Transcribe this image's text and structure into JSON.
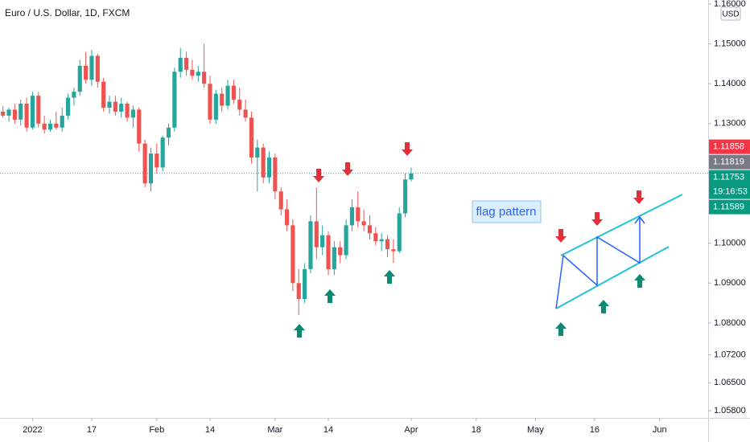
{
  "chart_data": {
    "type": "candlestick",
    "title": "Euro / U.S. Dollar, 1D, FXCM",
    "currency": "USD",
    "annotation": "flag pattern",
    "up_color": "#26a69a",
    "down_color": "#ef5350",
    "xlim": [
      -0.5,
      119.2
    ],
    "ylim": [
      1.0562,
      1.161
    ],
    "yticks": [
      {
        "value": 1.16,
        "label": "1.16000"
      },
      {
        "value": 1.15,
        "label": "1.15000"
      },
      {
        "value": 1.14,
        "label": "1.14000"
      },
      {
        "value": 1.13,
        "label": "1.13000"
      },
      {
        "value": 1.1,
        "label": "1.10000"
      },
      {
        "value": 1.09,
        "label": "1.09000"
      },
      {
        "value": 1.08,
        "label": "1.08000"
      },
      {
        "value": 1.072,
        "label": "1.07200"
      },
      {
        "value": 1.065,
        "label": "1.06500"
      },
      {
        "value": 1.058,
        "label": "1.05800"
      }
    ],
    "xticks": [
      {
        "value": 5,
        "label": "2022"
      },
      {
        "value": 15,
        "label": "17"
      },
      {
        "value": 26,
        "label": "Feb"
      },
      {
        "value": 35,
        "label": "14"
      },
      {
        "value": 46,
        "label": "Mar"
      },
      {
        "value": 55,
        "label": "14"
      },
      {
        "value": 69,
        "label": "Apr"
      },
      {
        "value": 80,
        "label": "18"
      },
      {
        "value": 90,
        "label": "May"
      },
      {
        "value": 100,
        "label": "16"
      },
      {
        "value": 111,
        "label": "Jun"
      }
    ],
    "last_price": 1.11753,
    "price_labels": [
      {
        "value": 1.11858,
        "label": "1.11858",
        "color": "#f23645"
      },
      {
        "value": 1.11819,
        "label": "1.11819",
        "color": "#787b86"
      },
      {
        "value": 1.11753,
        "label": "1.11753",
        "countdown": "19:16:53",
        "color": "#089981"
      },
      {
        "value": 1.11589,
        "label": "1.11589",
        "color": "#089981"
      }
    ],
    "candles": [
      [
        1.133,
        1.1345,
        1.1315,
        1.132
      ],
      [
        1.132,
        1.134,
        1.1305,
        1.1335
      ],
      [
        1.1335,
        1.135,
        1.13,
        1.131
      ],
      [
        1.131,
        1.136,
        1.1295,
        1.135
      ],
      [
        1.135,
        1.1365,
        1.128,
        1.129
      ],
      [
        1.129,
        1.138,
        1.1285,
        1.137
      ],
      [
        1.137,
        1.138,
        1.129,
        1.13
      ],
      [
        1.13,
        1.132,
        1.1275,
        1.1285
      ],
      [
        1.1285,
        1.131,
        1.128,
        1.13
      ],
      [
        1.13,
        1.133,
        1.1285,
        1.129
      ],
      [
        1.129,
        1.134,
        1.128,
        1.132
      ],
      [
        1.132,
        1.1375,
        1.131,
        1.1365
      ],
      [
        1.1365,
        1.139,
        1.1345,
        1.138
      ],
      [
        1.138,
        1.146,
        1.137,
        1.1445
      ],
      [
        1.1445,
        1.148,
        1.14,
        1.141
      ],
      [
        1.141,
        1.1485,
        1.1395,
        1.147
      ],
      [
        1.147,
        1.1475,
        1.139,
        1.1405
      ],
      [
        1.1405,
        1.1415,
        1.133,
        1.134
      ],
      [
        1.134,
        1.137,
        1.1325,
        1.1355
      ],
      [
        1.1355,
        1.137,
        1.132,
        1.133
      ],
      [
        1.133,
        1.1365,
        1.1315,
        1.135
      ],
      [
        1.135,
        1.1355,
        1.1305,
        1.1315
      ],
      [
        1.1315,
        1.1345,
        1.129,
        1.1335
      ],
      [
        1.1335,
        1.134,
        1.123,
        1.125
      ],
      [
        1.125,
        1.126,
        1.114,
        1.115
      ],
      [
        1.115,
        1.124,
        1.113,
        1.1225
      ],
      [
        1.1225,
        1.125,
        1.1175,
        1.119
      ],
      [
        1.119,
        1.127,
        1.118,
        1.1265
      ],
      [
        1.1265,
        1.13,
        1.1245,
        1.129
      ],
      [
        1.129,
        1.144,
        1.128,
        1.143
      ],
      [
        1.143,
        1.149,
        1.1415,
        1.1465
      ],
      [
        1.1465,
        1.148,
        1.142,
        1.1435
      ],
      [
        1.1435,
        1.146,
        1.141,
        1.142
      ],
      [
        1.142,
        1.1445,
        1.1405,
        1.143
      ],
      [
        1.143,
        1.15,
        1.139,
        1.14
      ],
      [
        1.14,
        1.142,
        1.13,
        1.131
      ],
      [
        1.131,
        1.1385,
        1.13,
        1.1375
      ],
      [
        1.1375,
        1.139,
        1.133,
        1.1345
      ],
      [
        1.1345,
        1.141,
        1.1335,
        1.1395
      ],
      [
        1.1395,
        1.141,
        1.135,
        1.136
      ],
      [
        1.136,
        1.139,
        1.132,
        1.1335
      ],
      [
        1.1335,
        1.136,
        1.1305,
        1.1315
      ],
      [
        1.1315,
        1.133,
        1.12,
        1.1215
      ],
      [
        1.1215,
        1.126,
        1.113,
        1.124
      ],
      [
        1.124,
        1.125,
        1.115,
        1.1165
      ],
      [
        1.1165,
        1.123,
        1.115,
        1.1215
      ],
      [
        1.1215,
        1.1225,
        1.111,
        1.113
      ],
      [
        1.113,
        1.114,
        1.107,
        1.1085
      ],
      [
        1.1085,
        1.111,
        1.103,
        1.1045
      ],
      [
        1.1045,
        1.106,
        1.088,
        1.09
      ],
      [
        1.09,
        1.0935,
        1.082,
        1.086
      ],
      [
        1.086,
        1.095,
        1.085,
        1.0935
      ],
      [
        1.0935,
        1.107,
        1.0925,
        1.1055
      ],
      [
        1.1055,
        1.114,
        1.096,
        1.099
      ],
      [
        1.099,
        1.1045,
        1.097,
        1.102
      ],
      [
        1.102,
        1.103,
        1.092,
        1.0935
      ],
      [
        1.0935,
        1.1005,
        1.092,
        1.099
      ],
      [
        1.099,
        1.1005,
        1.095,
        1.097
      ],
      [
        1.097,
        1.106,
        1.096,
        1.1045
      ],
      [
        1.1045,
        1.111,
        1.103,
        1.109
      ],
      [
        1.109,
        1.113,
        1.104,
        1.1055
      ],
      [
        1.1055,
        1.1085,
        1.103,
        1.1045
      ],
      [
        1.1045,
        1.107,
        1.101,
        1.1025
      ],
      [
        1.1025,
        1.104,
        1.0995,
        1.1005
      ],
      [
        1.1005,
        1.1025,
        1.098,
        1.101
      ],
      [
        1.101,
        1.102,
        1.0965,
        1.0985
      ],
      [
        1.0985,
        1.101,
        1.095,
        1.098
      ],
      [
        1.098,
        1.109,
        1.0975,
        1.1075
      ],
      [
        1.1075,
        1.1175,
        1.1065,
        1.116
      ],
      [
        1.116,
        1.119,
        1.1155,
        1.1175
      ]
    ]
  }
}
